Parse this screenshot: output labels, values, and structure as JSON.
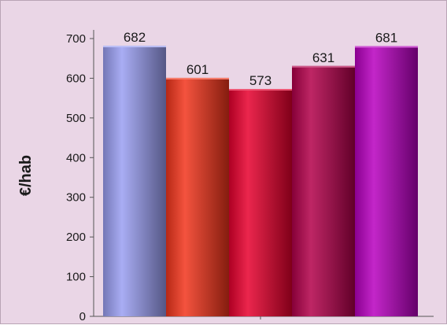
{
  "chart_data": {
    "type": "bar",
    "categories": [
      "",
      "",
      "",
      "",
      ""
    ],
    "values": [
      682,
      601,
      573,
      631,
      681
    ],
    "data_labels": [
      "682",
      "601",
      "573",
      "631",
      "681"
    ],
    "colors": [
      "#9a9ef2",
      "#f2351c",
      "#e8002e",
      "#b2004a",
      "#b800c0"
    ],
    "title": "",
    "xlabel": "",
    "ylabel": "€/hab",
    "ylim": [
      0,
      700
    ],
    "yticks": [
      "0",
      "100",
      "200",
      "300",
      "400",
      "500",
      "600",
      "700"
    ],
    "grid": false,
    "legend": "none"
  }
}
